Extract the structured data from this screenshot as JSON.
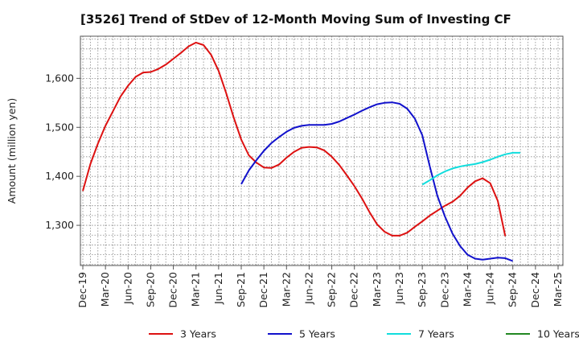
{
  "chart_data": {
    "type": "line",
    "title": "[3526]  Trend of StDev of 12-Month Moving Sum of Investing CF",
    "xlabel": "",
    "ylabel": "Amount (million yen)",
    "ylim": [
      1218,
      1686
    ],
    "yticks": [
      1300,
      1400,
      1500,
      1600
    ],
    "ytick_labels": [
      "1,300",
      "1,400",
      "1,500",
      "1,600"
    ],
    "xtick_labels": [
      "Dec-19",
      "Mar-20",
      "Jun-20",
      "Sep-20",
      "Dec-20",
      "Mar-21",
      "Jun-21",
      "Sep-21",
      "Dec-21",
      "Mar-22",
      "Jun-22",
      "Sep-22",
      "Dec-22",
      "Mar-23",
      "Jun-23",
      "Sep-23",
      "Dec-23",
      "Mar-24",
      "Jun-24",
      "Sep-24",
      "Dec-24",
      "Mar-25"
    ],
    "grid": true,
    "legend_position": "bottom",
    "series": [
      {
        "name": "3 Years",
        "color": "#dd1111",
        "start": "Dec-19",
        "values": [
          1370,
          1425,
          1467,
          1503,
          1533,
          1563,
          1585,
          1603,
          1612,
          1613,
          1619,
          1628,
          1640,
          1652,
          1665,
          1673,
          1668,
          1648,
          1615,
          1570,
          1520,
          1475,
          1443,
          1428,
          1418,
          1417,
          1424,
          1438,
          1450,
          1458,
          1460,
          1459,
          1453,
          1440,
          1423,
          1402,
          1380,
          1355,
          1327,
          1302,
          1287,
          1279,
          1279,
          1285,
          1297,
          1308,
          1320,
          1330,
          1340,
          1348,
          1360,
          1377,
          1390,
          1396,
          1386,
          1350,
          1278
        ]
      },
      {
        "name": "5 Years",
        "color": "#1111cc",
        "start": "Sep-21",
        "values": [
          1384,
          1412,
          1433,
          1452,
          1468,
          1480,
          1491,
          1499,
          1503,
          1505,
          1505,
          1505,
          1507,
          1512,
          1519,
          1526,
          1534,
          1541,
          1547,
          1550,
          1551,
          1548,
          1538,
          1518,
          1484,
          1420,
          1360,
          1318,
          1283,
          1258,
          1240,
          1232,
          1230,
          1232,
          1234,
          1233,
          1227
        ]
      },
      {
        "name": "7 Years",
        "color": "#11dddd",
        "start": "Sep-23",
        "values": [
          1383,
          1392,
          1402,
          1410,
          1416,
          1420,
          1423,
          1425,
          1429,
          1434,
          1440,
          1445,
          1448,
          1448
        ]
      },
      {
        "name": "10 Years",
        "color": "#228822",
        "start": "Dec-24",
        "values": []
      }
    ]
  }
}
